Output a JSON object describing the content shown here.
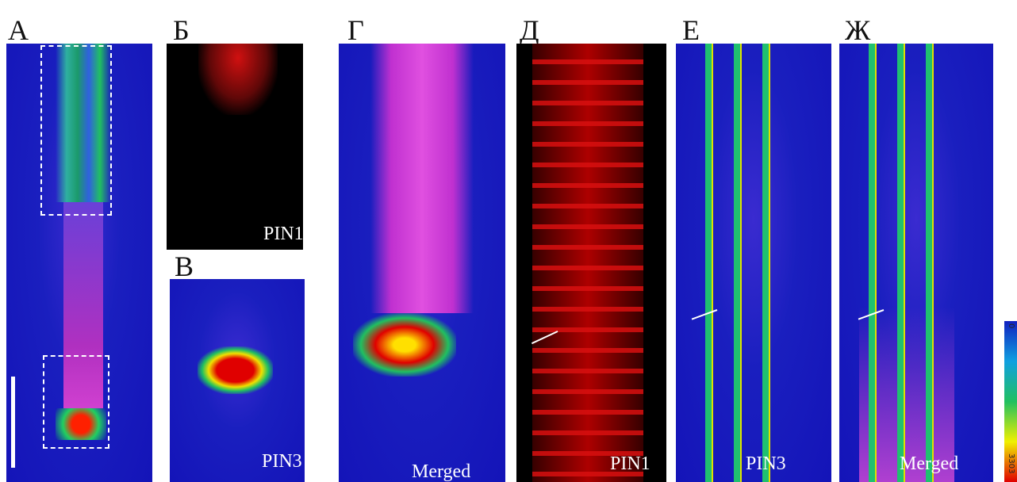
{
  "panels": [
    {
      "label": "А"
    },
    {
      "label": "Б",
      "caption": "PIN1"
    },
    {
      "label": "В",
      "caption": "PIN3"
    },
    {
      "label": "Г",
      "caption": "Merged"
    },
    {
      "label": "Д",
      "caption": "PIN1"
    },
    {
      "label": "Е",
      "caption": "PIN3"
    },
    {
      "label": "Ж",
      "caption": "Merged"
    }
  ],
  "colorbar": {
    "min_label": "0",
    "max_label": "3303"
  }
}
